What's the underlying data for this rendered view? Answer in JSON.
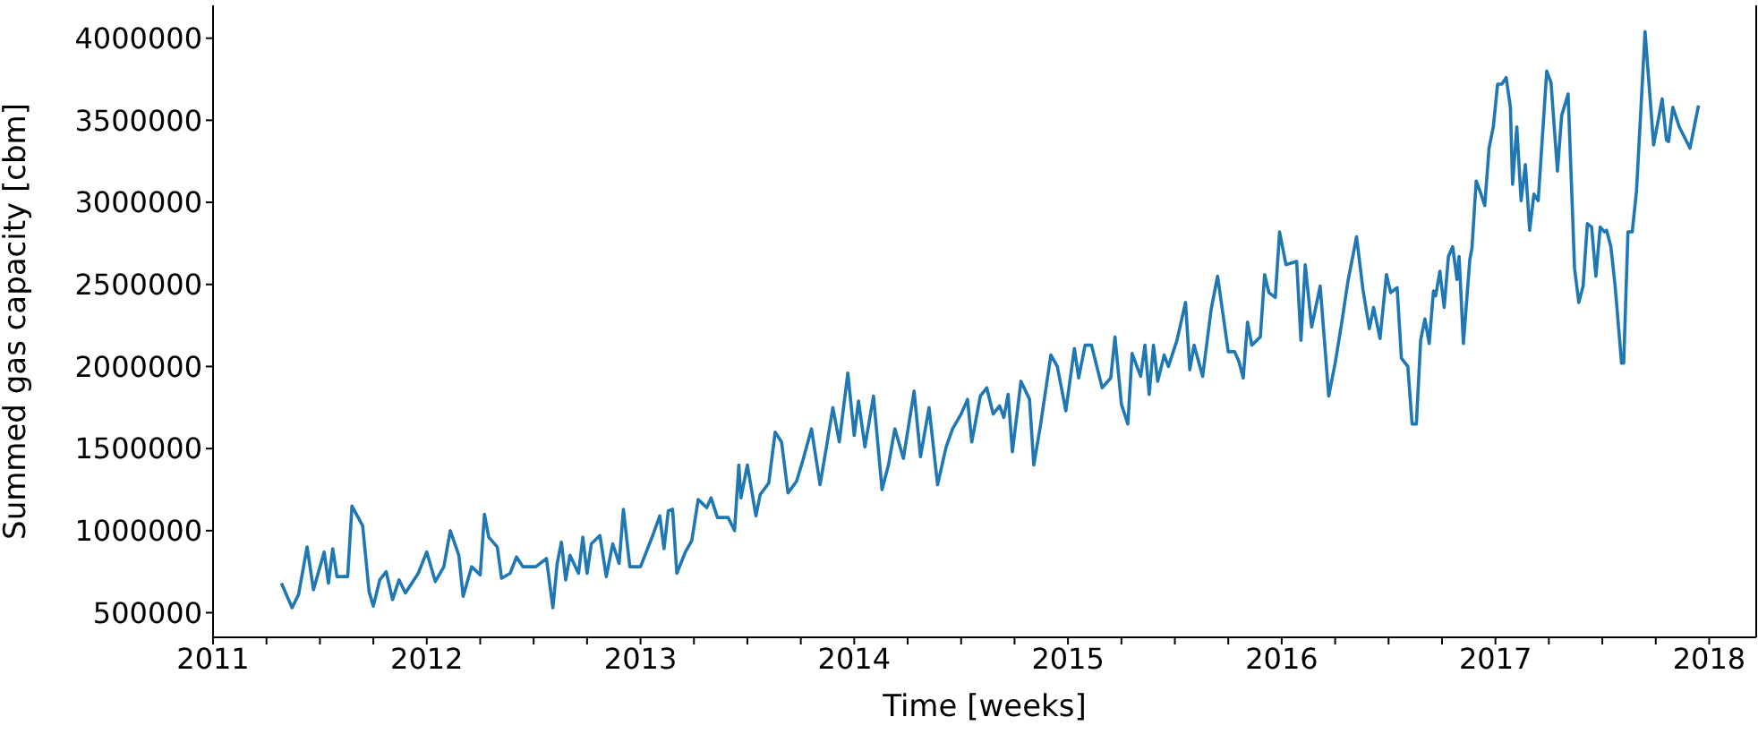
{
  "chart_data": {
    "type": "line",
    "xlabel": "Time [weeks]",
    "ylabel": "Summed gas capacity [cbm]",
    "xlim": [
      2011,
      2018.22
    ],
    "ylim": [
      350000,
      4200000
    ],
    "xticks": [
      2011,
      {
        "value": 2011.25,
        "label": null
      },
      {
        "value": 2011.5,
        "label": null
      },
      {
        "value": 2011.75,
        "label": null
      },
      2012,
      {
        "value": 2012.25,
        "label": null
      },
      {
        "value": 2012.5,
        "label": null
      },
      {
        "value": 2012.75,
        "label": null
      },
      2013,
      {
        "value": 2013.25,
        "label": null
      },
      {
        "value": 2013.5,
        "label": null
      },
      {
        "value": 2013.75,
        "label": null
      },
      2014,
      {
        "value": 2014.25,
        "label": null
      },
      {
        "value": 2014.5,
        "label": null
      },
      {
        "value": 2014.75,
        "label": null
      },
      2015,
      {
        "value": 2015.25,
        "label": null
      },
      {
        "value": 2015.5,
        "label": null
      },
      {
        "value": 2015.75,
        "label": null
      },
      2016,
      {
        "value": 2016.25,
        "label": null
      },
      {
        "value": 2016.5,
        "label": null
      },
      {
        "value": 2016.75,
        "label": null
      },
      2017,
      {
        "value": 2017.25,
        "label": null
      },
      {
        "value": 2017.5,
        "label": null
      },
      {
        "value": 2017.75,
        "label": null
      },
      2018
    ],
    "yticks": [
      500000,
      1000000,
      1500000,
      2000000,
      2500000,
      3000000,
      3500000,
      4000000
    ],
    "grid": false,
    "legend": false,
    "marker": "none",
    "line_style": "solid",
    "x": [
      2011.32,
      2011.37,
      2011.4,
      2011.44,
      2011.47,
      2011.52,
      2011.54,
      2011.56,
      2011.58,
      2011.63,
      2011.65,
      2011.7,
      2011.73,
      2011.75,
      2011.78,
      2011.81,
      2011.84,
      2011.87,
      2011.9,
      2011.96,
      2012.0,
      2012.04,
      2012.08,
      2012.11,
      2012.15,
      2012.17,
      2012.21,
      2012.25,
      2012.27,
      2012.29,
      2012.33,
      2012.35,
      2012.39,
      2012.42,
      2012.45,
      2012.51,
      2012.56,
      2012.59,
      2012.61,
      2012.63,
      2012.65,
      2012.67,
      2012.71,
      2012.73,
      2012.75,
      2012.77,
      2012.81,
      2012.84,
      2012.87,
      2012.9,
      2012.92,
      2012.95,
      2013.0,
      2013.06,
      2013.09,
      2013.11,
      2013.13,
      2013.15,
      2013.17,
      2013.21,
      2013.24,
      2013.27,
      2013.31,
      2013.33,
      2013.36,
      2013.41,
      2013.44,
      2013.46,
      2013.47,
      2013.5,
      2013.54,
      2013.56,
      2013.6,
      2013.63,
      2013.66,
      2013.69,
      2013.73,
      2013.76,
      2013.8,
      2013.84,
      2013.87,
      2013.9,
      2013.93,
      2013.97,
      2014.0,
      2014.02,
      2014.05,
      2014.09,
      2014.13,
      2014.16,
      2014.19,
      2014.23,
      2014.28,
      2014.31,
      2014.35,
      2014.39,
      2014.43,
      2014.46,
      2014.5,
      2014.53,
      2014.55,
      2014.59,
      2014.62,
      2014.65,
      2014.68,
      2014.7,
      2014.72,
      2014.74,
      2014.78,
      2014.82,
      2014.84,
      2014.87,
      2014.92,
      2014.95,
      2014.99,
      2015.03,
      2015.05,
      2015.08,
      2015.11,
      2015.16,
      2015.2,
      2015.22,
      2015.25,
      2015.28,
      2015.3,
      2015.34,
      2015.36,
      2015.38,
      2015.4,
      2015.42,
      2015.45,
      2015.47,
      2015.51,
      2015.55,
      2015.57,
      2015.59,
      2015.63,
      2015.67,
      2015.7,
      2015.75,
      2015.78,
      2015.8,
      2015.82,
      2015.84,
      2015.86,
      2015.9,
      2015.92,
      2015.94,
      2015.97,
      2015.99,
      2016.02,
      2016.07,
      2016.09,
      2016.11,
      2016.14,
      2016.18,
      2016.22,
      2016.25,
      2016.28,
      2016.31,
      2016.35,
      2016.38,
      2016.41,
      2016.43,
      2016.46,
      2016.49,
      2016.51,
      2016.54,
      2016.56,
      2016.59,
      2016.61,
      2016.63,
      2016.65,
      2016.67,
      2016.69,
      2016.71,
      2016.72,
      2016.74,
      2016.76,
      2016.78,
      2016.8,
      2016.82,
      2016.83,
      2016.85,
      2016.88,
      2016.89,
      2016.91,
      2016.93,
      2016.95,
      2016.97,
      2016.99,
      2017.01,
      2017.03,
      2017.05,
      2017.07,
      2017.08,
      2017.1,
      2017.12,
      2017.14,
      2017.16,
      2017.18,
      2017.2,
      2017.24,
      2017.26,
      2017.29,
      2017.31,
      2017.34,
      2017.37,
      2017.39,
      2017.41,
      2017.43,
      2017.45,
      2017.47,
      2017.49,
      2017.51,
      2017.52,
      2017.54,
      2017.56,
      2017.59,
      2017.6,
      2017.62,
      2017.64,
      2017.66,
      2017.7,
      2017.74,
      2017.78,
      2017.8,
      2017.81,
      2017.83,
      2017.86,
      2017.91,
      2017.95
    ],
    "series": [
      {
        "color": "#1f77b4",
        "values": [
          680000,
          530000,
          610000,
          900000,
          640000,
          870000,
          680000,
          890000,
          720000,
          720000,
          1150000,
          1030000,
          630000,
          540000,
          700000,
          750000,
          580000,
          700000,
          620000,
          740000,
          870000,
          690000,
          780000,
          1000000,
          850000,
          600000,
          780000,
          730000,
          1100000,
          960000,
          900000,
          710000,
          740000,
          840000,
          780000,
          780000,
          830000,
          530000,
          800000,
          930000,
          700000,
          850000,
          740000,
          960000,
          740000,
          920000,
          970000,
          720000,
          920000,
          800000,
          1130000,
          780000,
          780000,
          980000,
          1090000,
          890000,
          1120000,
          1130000,
          740000,
          870000,
          940000,
          1190000,
          1140000,
          1200000,
          1080000,
          1080000,
          1000000,
          1400000,
          1200000,
          1400000,
          1090000,
          1220000,
          1290000,
          1600000,
          1540000,
          1230000,
          1300000,
          1430000,
          1620000,
          1280000,
          1510000,
          1750000,
          1540000,
          1960000,
          1580000,
          1790000,
          1510000,
          1820000,
          1250000,
          1400000,
          1620000,
          1440000,
          1850000,
          1450000,
          1750000,
          1280000,
          1510000,
          1620000,
          1710000,
          1800000,
          1540000,
          1820000,
          1870000,
          1710000,
          1760000,
          1690000,
          1830000,
          1480000,
          1910000,
          1800000,
          1400000,
          1630000,
          2070000,
          2000000,
          1730000,
          2110000,
          1930000,
          2130000,
          2130000,
          1870000,
          1930000,
          2180000,
          1770000,
          1650000,
          2080000,
          1940000,
          2130000,
          1830000,
          2130000,
          1910000,
          2070000,
          2000000,
          2160000,
          2390000,
          1980000,
          2130000,
          1940000,
          2350000,
          2550000,
          2090000,
          2090000,
          2030000,
          1930000,
          2270000,
          2130000,
          2180000,
          2560000,
          2450000,
          2420000,
          2820000,
          2620000,
          2640000,
          2160000,
          2620000,
          2240000,
          2490000,
          1820000,
          2020000,
          2260000,
          2520000,
          2790000,
          2470000,
          2230000,
          2360000,
          2170000,
          2560000,
          2450000,
          2480000,
          2050000,
          2000000,
          1650000,
          1650000,
          2160000,
          2290000,
          2140000,
          2460000,
          2430000,
          2580000,
          2360000,
          2670000,
          2730000,
          2530000,
          2670000,
          2140000,
          2650000,
          2720000,
          3130000,
          3060000,
          2980000,
          3330000,
          3460000,
          3720000,
          3720000,
          3760000,
          3580000,
          3110000,
          3460000,
          3010000,
          3230000,
          2830000,
          3050000,
          3010000,
          3800000,
          3730000,
          3190000,
          3530000,
          3660000,
          2600000,
          2390000,
          2490000,
          2870000,
          2850000,
          2550000,
          2850000,
          2820000,
          2830000,
          2730000,
          2490000,
          2020000,
          2020000,
          2820000,
          2820000,
          3070000,
          4040000,
          3350000,
          3630000,
          3380000,
          3370000,
          3580000,
          3460000,
          3330000,
          3590000
        ]
      }
    ]
  }
}
